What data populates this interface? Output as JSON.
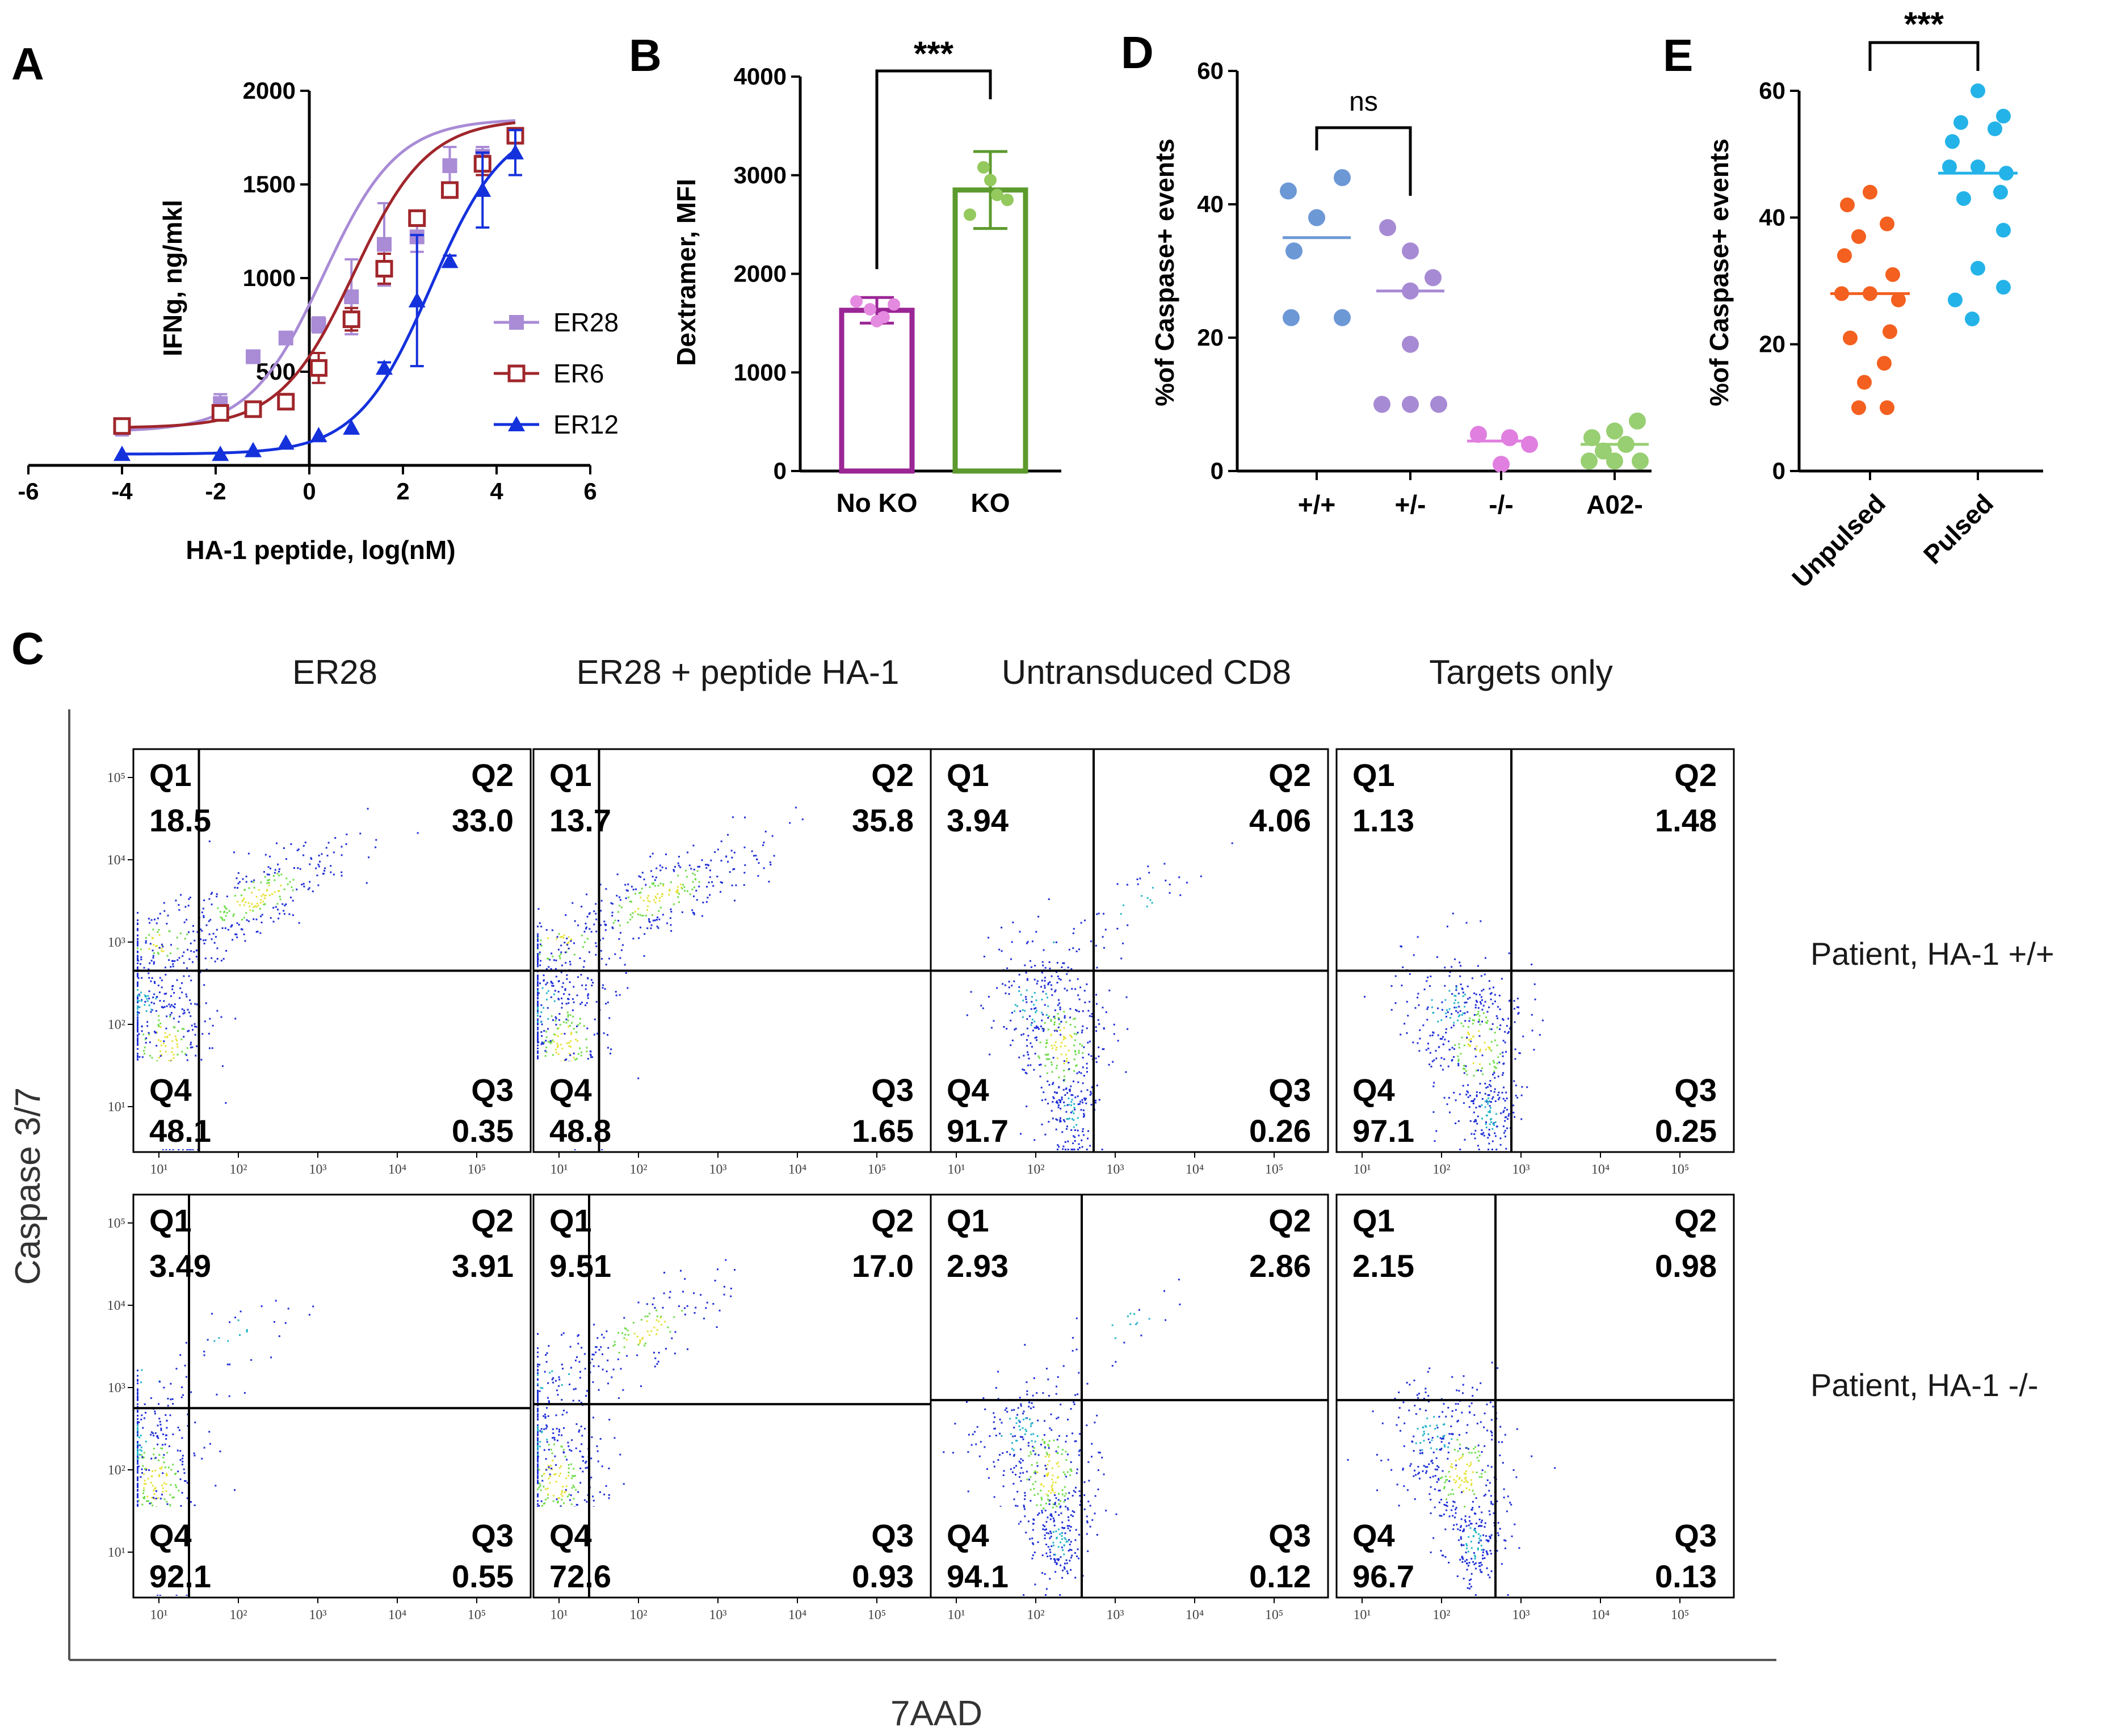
{
  "chart_data": [
    {
      "panel": "A",
      "type": "line",
      "xlabel": "HA-1 peptide, log(nM)",
      "ylabel": "IFNg, ng/mkl",
      "xlim": [
        -6,
        6
      ],
      "ylim": [
        0,
        2000
      ],
      "xticks": [
        "-6",
        "-4",
        "-2",
        "0",
        "2",
        "4",
        "6"
      ],
      "yticks": [
        "500",
        "1000",
        "1500",
        "2000"
      ],
      "legend_position": "right",
      "series": [
        {
          "name": "ER28",
          "color": "#a98bd6",
          "marker": "square-filled",
          "x": [
            -4,
            -1.9,
            -1.2,
            -0.5,
            0.2,
            0.9,
            1.6,
            2.3,
            3,
            3.7,
            4.4
          ],
          "y": [
            200,
            330,
            580,
            680,
            750,
            900,
            1180,
            1220,
            1600,
            1650,
            1760
          ],
          "err": [
            40,
            50,
            30,
            30,
            40,
            200,
            220,
            80,
            100,
            50,
            30
          ]
        },
        {
          "name": "ER6",
          "color": "#a0262b",
          "marker": "square-open",
          "x": [
            -4,
            -1.9,
            -1.2,
            -0.5,
            0.2,
            0.9,
            1.6,
            2.3,
            3,
            3.7,
            4.4
          ],
          "y": [
            210,
            280,
            300,
            340,
            520,
            780,
            1050,
            1320,
            1470,
            1610,
            1760
          ],
          "err": [
            30,
            20,
            20,
            20,
            80,
            60,
            80,
            30,
            40,
            60,
            30
          ]
        },
        {
          "name": "ER12",
          "color": "#1431dc",
          "marker": "triangle-filled",
          "x": [
            -4,
            -1.9,
            -1.2,
            -0.5,
            0.2,
            0.9,
            1.6,
            2.3,
            3,
            3.7,
            4.4
          ],
          "y": [
            60,
            60,
            80,
            120,
            160,
            200,
            520,
            880,
            1090,
            1470,
            1670
          ],
          "err": [
            0,
            0,
            0,
            0,
            0,
            0,
            30,
            350,
            30,
            200,
            120
          ]
        }
      ]
    },
    {
      "panel": "B",
      "type": "bar",
      "categories": [
        "No KO",
        "KO"
      ],
      "values": [
        1630,
        2850
      ],
      "err": [
        130,
        390
      ],
      "colors": [
        "#9b2695",
        "#5c9a2e"
      ],
      "points": [
        [
          1720,
          1640,
          1560,
          1690,
          1520
        ],
        [
          2600,
          3080,
          2800,
          2750,
          2950
        ]
      ],
      "point_colors": [
        "#e48ae0",
        "#93c95d"
      ],
      "ylabel": "Dextramer, MFI",
      "ylim": [
        0,
        4000
      ],
      "yticks": [
        "0",
        "1000",
        "2000",
        "3000",
        "4000"
      ],
      "significance": "***"
    },
    {
      "panel": "D",
      "type": "scatter",
      "categories": [
        "+/+",
        "+/-",
        "-/-",
        "A02-"
      ],
      "ylabel": "%of Caspase+ events",
      "ylim": [
        0,
        60
      ],
      "yticks": [
        "0",
        "20",
        "40",
        "60"
      ],
      "colors": [
        "#6d98d6",
        "#a78ad4",
        "#e07fe0",
        "#98cf72"
      ],
      "points": [
        [
          42,
          44,
          38,
          33,
          23,
          23
        ],
        [
          36.5,
          33,
          29,
          27,
          19,
          10,
          10,
          10
        ],
        [
          5.5,
          5,
          4,
          1
        ],
        [
          7.5,
          6,
          5,
          4,
          3,
          1.5,
          1.5,
          1.5
        ]
      ],
      "medians": [
        35,
        27,
        4.5,
        4
      ],
      "significance": "ns"
    },
    {
      "panel": "E",
      "type": "scatter",
      "categories": [
        "Unpulsed",
        "Pulsed"
      ],
      "ylabel": "%of Caspase+ events",
      "ylim": [
        0,
        60
      ],
      "yticks": [
        "0",
        "20",
        "40",
        "60"
      ],
      "colors": [
        "#f3601f",
        "#24b3e8"
      ],
      "points": [
        [
          44,
          42,
          39,
          37,
          34,
          31,
          28,
          28,
          27,
          22,
          21,
          17,
          14,
          10,
          10
        ],
        [
          60,
          56,
          55,
          54,
          52,
          48,
          48,
          47,
          44,
          43,
          38,
          32,
          29,
          27,
          24
        ]
      ],
      "medians": [
        28,
        47
      ],
      "significance": "***"
    },
    {
      "panel": "C",
      "type": "scatter",
      "xlabel": "7AAD",
      "ylabel": "Caspase 3/7",
      "columns": [
        "ER28",
        "ER28 + peptide HA-1",
        "Untransduced CD8",
        "Targets only"
      ],
      "rows": [
        "Patient, HA-1 +/+",
        "Patient, HA-1 -/-"
      ],
      "x_ticks": [
        "10¹",
        "10²",
        "10³",
        "10⁴",
        "10⁵"
      ],
      "y_ticks": [
        "10⁵",
        "10⁴",
        "10³",
        "10²",
        "10¹"
      ],
      "quadrants": [
        [
          {
            "Q1": "18.5",
            "Q2": "33.0",
            "Q3": "0.35",
            "Q4": "48.1"
          },
          {
            "Q1": "13.7",
            "Q2": "35.8",
            "Q3": "1.65",
            "Q4": "48.8"
          },
          {
            "Q1": "3.94",
            "Q2": "4.06",
            "Q3": "0.26",
            "Q4": "91.7"
          },
          {
            "Q1": "1.13",
            "Q2": "1.48",
            "Q3": "0.25",
            "Q4": "97.1"
          }
        ],
        [
          {
            "Q1": "3.49",
            "Q2": "3.91",
            "Q3": "0.55",
            "Q4": "92.1"
          },
          {
            "Q1": "9.51",
            "Q2": "17.0",
            "Q3": "0.93",
            "Q4": "72.6"
          },
          {
            "Q1": "2.93",
            "Q2": "2.86",
            "Q3": "0.12",
            "Q4": "94.1"
          },
          {
            "Q1": "2.15",
            "Q2": "0.98",
            "Q3": "0.13",
            "Q4": "96.7"
          }
        ]
      ]
    }
  ],
  "panel_labels": {
    "A": "A",
    "B": "B",
    "C": "C",
    "D": "D",
    "E": "E"
  },
  "quadrant_names": {
    "Q1": "Q1",
    "Q2": "Q2",
    "Q3": "Q3",
    "Q4": "Q4"
  },
  "colors": {
    "density_blue": "#1f2fd6",
    "density_cyan": "#27b6c9",
    "density_green": "#6fdc4a",
    "density_yellow": "#e6e23a"
  }
}
